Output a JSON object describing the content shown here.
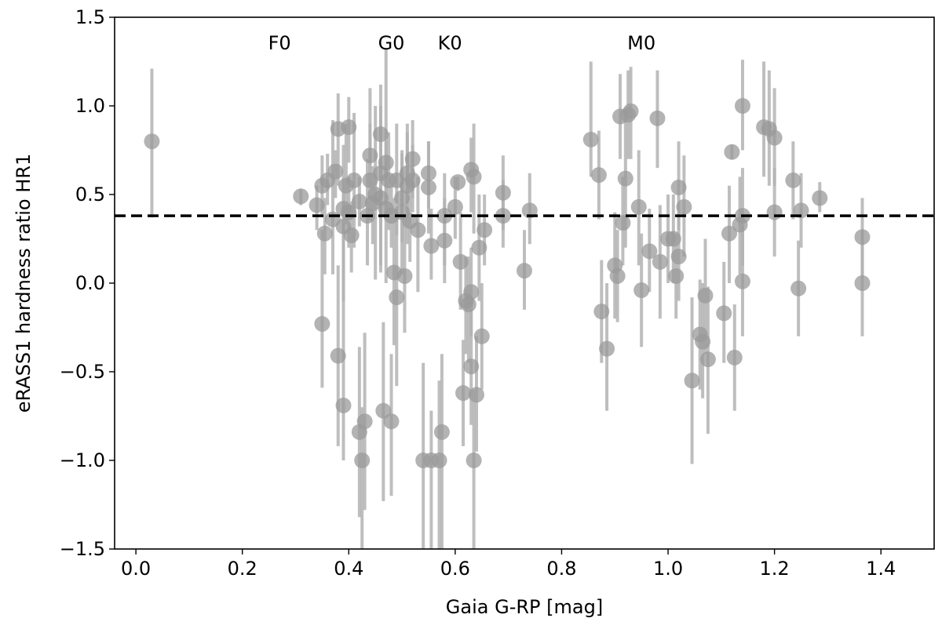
{
  "chart_data": {
    "type": "scatter",
    "title": "",
    "xlabel": "Gaia G-RP [mag]",
    "ylabel": "eRASS1 hardness ratio HR1",
    "xlim": [
      -0.04,
      1.5
    ],
    "ylim": [
      -1.5,
      1.5
    ],
    "xticks": [
      0.0,
      0.2,
      0.4,
      0.6,
      0.8,
      1.0,
      1.2,
      1.4
    ],
    "xtick_labels": [
      "0.0",
      "0.2",
      "0.4",
      "0.6",
      "0.8",
      "1.0",
      "1.2",
      "1.4"
    ],
    "yticks": [
      -1.5,
      -1.0,
      -0.5,
      0.0,
      0.5,
      1.0,
      1.5
    ],
    "ytick_labels": [
      "−1.5",
      "−1.0",
      "−0.5",
      "0.0",
      "0.5",
      "1.0",
      "1.5"
    ],
    "grid": false,
    "legend": "none",
    "reference_line": {
      "y": 0.38,
      "style": "dashed",
      "color": "#000000"
    },
    "annotations": [
      {
        "text": "F0",
        "x": 0.27,
        "y": 1.38
      },
      {
        "text": "G0",
        "x": 0.48,
        "y": 1.38
      },
      {
        "text": "K0",
        "x": 0.59,
        "y": 1.38
      },
      {
        "text": "M0",
        "x": 0.95,
        "y": 1.38
      }
    ],
    "marker_color": "#999999",
    "errorbar_color": "#b3b3b3",
    "points": [
      {
        "x": 0.03,
        "y": 0.8,
        "lo": 0.37,
        "hi": 1.21
      },
      {
        "x": 0.31,
        "y": 0.49,
        "lo": 0.44,
        "hi": 0.53
      },
      {
        "x": 0.34,
        "y": 0.44,
        "lo": 0.3,
        "hi": 0.55
      },
      {
        "x": 0.35,
        "y": 0.55,
        "lo": 0.38,
        "hi": 0.72
      },
      {
        "x": 0.35,
        "y": -0.23,
        "lo": -0.59,
        "hi": 0.3
      },
      {
        "x": 0.355,
        "y": 0.28,
        "lo": 0.05,
        "hi": 0.48
      },
      {
        "x": 0.36,
        "y": 0.58,
        "lo": 0.44,
        "hi": 0.73
      },
      {
        "x": 0.37,
        "y": 0.36,
        "lo": 0.05,
        "hi": 0.92
      },
      {
        "x": 0.375,
        "y": 0.63,
        "lo": 0.48,
        "hi": 0.75
      },
      {
        "x": 0.38,
        "y": 0.87,
        "lo": 0.55,
        "hi": 1.07
      },
      {
        "x": 0.38,
        "y": -0.41,
        "lo": -0.92,
        "hi": 0.1
      },
      {
        "x": 0.39,
        "y": 0.42,
        "lo": -0.1,
        "hi": 0.78
      },
      {
        "x": 0.39,
        "y": 0.32,
        "lo": -0.1,
        "hi": 0.58
      },
      {
        "x": 0.39,
        "y": -0.69,
        "lo": -1.0,
        "hi": -0.08
      },
      {
        "x": 0.395,
        "y": 0.55,
        "lo": 0.33,
        "hi": 0.9
      },
      {
        "x": 0.4,
        "y": 0.88,
        "lo": 0.68,
        "hi": 1.05
      },
      {
        "x": 0.4,
        "y": 0.4,
        "lo": 0.2,
        "hi": 0.6
      },
      {
        "x": 0.405,
        "y": 0.27,
        "lo": 0.06,
        "hi": 0.46
      },
      {
        "x": 0.41,
        "y": 0.58,
        "lo": 0.2,
        "hi": 0.96
      },
      {
        "x": 0.42,
        "y": 0.46,
        "lo": 0.32,
        "hi": 0.6
      },
      {
        "x": 0.42,
        "y": -0.84,
        "lo": -1.32,
        "hi": -0.36
      },
      {
        "x": 0.425,
        "y": -1.0,
        "lo": -1.5,
        "hi": -0.7
      },
      {
        "x": 0.43,
        "y": -0.78,
        "lo": -1.28,
        "hi": -0.28
      },
      {
        "x": 0.435,
        "y": 0.38,
        "lo": 0.1,
        "hi": 0.7
      },
      {
        "x": 0.44,
        "y": 0.72,
        "lo": 0.55,
        "hi": 0.9
      },
      {
        "x": 0.44,
        "y": 0.58,
        "lo": 0.35,
        "hi": 1.1
      },
      {
        "x": 0.445,
        "y": 0.45,
        "lo": 0.22,
        "hi": 0.66
      },
      {
        "x": 0.45,
        "y": 0.5,
        "lo": 0.02,
        "hi": 1.0
      },
      {
        "x": 0.46,
        "y": 0.84,
        "lo": 0.56,
        "hi": 1.12
      },
      {
        "x": 0.46,
        "y": 0.48,
        "lo": 0.06,
        "hi": 0.92
      },
      {
        "x": 0.46,
        "y": 0.62,
        "lo": 0.1,
        "hi": 1.0
      },
      {
        "x": 0.465,
        "y": -0.72,
        "lo": -1.23,
        "hi": -0.22
      },
      {
        "x": 0.47,
        "y": 0.68,
        "lo": 0.38,
        "hi": 1.32
      },
      {
        "x": 0.47,
        "y": 0.42,
        "lo": 0.0,
        "hi": 0.8
      },
      {
        "x": 0.475,
        "y": 0.58,
        "lo": 0.3,
        "hi": 0.85
      },
      {
        "x": 0.48,
        "y": 0.38,
        "lo": 0.2,
        "hi": 0.55
      },
      {
        "x": 0.48,
        "y": -0.78,
        "lo": -1.2,
        "hi": -0.4
      },
      {
        "x": 0.485,
        "y": 0.06,
        "lo": -0.35,
        "hi": 0.48
      },
      {
        "x": 0.49,
        "y": -0.08,
        "lo": -0.58,
        "hi": 0.4
      },
      {
        "x": 0.49,
        "y": 0.58,
        "lo": 0.27,
        "hi": 0.9
      },
      {
        "x": 0.5,
        "y": 0.48,
        "lo": 0.23,
        "hi": 0.73
      },
      {
        "x": 0.5,
        "y": 0.4,
        "lo": 0.05,
        "hi": 0.75
      },
      {
        "x": 0.505,
        "y": 0.04,
        "lo": -0.28,
        "hi": 0.36
      },
      {
        "x": 0.51,
        "y": 0.62,
        "lo": 0.4,
        "hi": 0.85
      },
      {
        "x": 0.51,
        "y": 0.55,
        "lo": 0.22,
        "hi": 0.9
      },
      {
        "x": 0.515,
        "y": 0.35,
        "lo": 0.12,
        "hi": 0.58
      },
      {
        "x": 0.52,
        "y": 0.58,
        "lo": 0.4,
        "hi": 0.78
      },
      {
        "x": 0.52,
        "y": 0.7,
        "lo": 0.48,
        "hi": 0.92
      },
      {
        "x": 0.53,
        "y": 0.3,
        "lo": -0.05,
        "hi": 0.6
      },
      {
        "x": 0.54,
        "y": -1.0,
        "lo": -1.5,
        "hi": -0.45
      },
      {
        "x": 0.55,
        "y": 0.62,
        "lo": 0.42,
        "hi": 0.8
      },
      {
        "x": 0.55,
        "y": 0.54,
        "lo": 0.28,
        "hi": 0.8
      },
      {
        "x": 0.555,
        "y": 0.21,
        "lo": 0.02,
        "hi": 0.42
      },
      {
        "x": 0.555,
        "y": -1.0,
        "lo": -1.5,
        "hi": -0.72
      },
      {
        "x": 0.57,
        "y": -1.0,
        "lo": -1.5,
        "hi": -0.55
      },
      {
        "x": 0.575,
        "y": -0.84,
        "lo": -1.5,
        "hi": -0.4
      },
      {
        "x": 0.58,
        "y": 0.38,
        "lo": 0.1,
        "hi": 0.62
      },
      {
        "x": 0.58,
        "y": 0.24,
        "lo": 0.0,
        "hi": 0.48
      },
      {
        "x": 0.6,
        "y": 0.43,
        "lo": 0.25,
        "hi": 0.6
      },
      {
        "x": 0.605,
        "y": 0.57,
        "lo": 0.52,
        "hi": 0.6
      },
      {
        "x": 0.61,
        "y": 0.12,
        "lo": -0.15,
        "hi": 0.4
      },
      {
        "x": 0.615,
        "y": -0.62,
        "lo": -0.92,
        "hi": -0.32
      },
      {
        "x": 0.62,
        "y": -0.1,
        "lo": -0.4,
        "hi": 0.15
      },
      {
        "x": 0.625,
        "y": -0.12,
        "lo": -0.45,
        "hi": 0.15
      },
      {
        "x": 0.63,
        "y": -0.05,
        "lo": -0.3,
        "hi": 0.2
      },
      {
        "x": 0.63,
        "y": -0.47,
        "lo": -0.8,
        "hi": -0.15
      },
      {
        "x": 0.63,
        "y": 0.64,
        "lo": 0.4,
        "hi": 0.82
      },
      {
        "x": 0.635,
        "y": 0.6,
        "lo": 0.28,
        "hi": 0.9
      },
      {
        "x": 0.635,
        "y": -1.0,
        "lo": -1.5,
        "hi": -0.6
      },
      {
        "x": 0.64,
        "y": -0.63,
        "lo": -0.95,
        "hi": -0.3
      },
      {
        "x": 0.645,
        "y": 0.2,
        "lo": -0.1,
        "hi": 0.5
      },
      {
        "x": 0.65,
        "y": -0.3,
        "lo": -0.6,
        "hi": 0.0
      },
      {
        "x": 0.655,
        "y": 0.3,
        "lo": 0.1,
        "hi": 0.5
      },
      {
        "x": 0.69,
        "y": 0.51,
        "lo": 0.3,
        "hi": 0.72
      },
      {
        "x": 0.69,
        "y": 0.38,
        "lo": 0.2,
        "hi": 0.58
      },
      {
        "x": 0.73,
        "y": 0.07,
        "lo": -0.15,
        "hi": 0.3
      },
      {
        "x": 0.74,
        "y": 0.41,
        "lo": 0.22,
        "hi": 0.62
      },
      {
        "x": 0.855,
        "y": 0.81,
        "lo": 0.6,
        "hi": 1.25
      },
      {
        "x": 0.87,
        "y": 0.61,
        "lo": 0.36,
        "hi": 0.86
      },
      {
        "x": 0.875,
        "y": -0.16,
        "lo": -0.45,
        "hi": 0.13
      },
      {
        "x": 0.885,
        "y": -0.37,
        "lo": -0.72,
        "hi": 0.0
      },
      {
        "x": 0.9,
        "y": 0.1,
        "lo": -0.2,
        "hi": 0.4
      },
      {
        "x": 0.905,
        "y": 0.04,
        "lo": -0.22,
        "hi": 0.3
      },
      {
        "x": 0.91,
        "y": 0.94,
        "lo": 0.7,
        "hi": 1.18
      },
      {
        "x": 0.915,
        "y": 0.34,
        "lo": 0.1,
        "hi": 0.6
      },
      {
        "x": 0.92,
        "y": 0.59,
        "lo": 0.2,
        "hi": 0.98
      },
      {
        "x": 0.925,
        "y": 0.95,
        "lo": 0.7,
        "hi": 1.2
      },
      {
        "x": 0.93,
        "y": 0.97,
        "lo": 0.7,
        "hi": 1.22
      },
      {
        "x": 0.945,
        "y": 0.43,
        "lo": 0.1,
        "hi": 0.75
      },
      {
        "x": 0.95,
        "y": -0.04,
        "lo": -0.36,
        "hi": 0.28
      },
      {
        "x": 0.965,
        "y": 0.18,
        "lo": -0.05,
        "hi": 0.42
      },
      {
        "x": 0.98,
        "y": 0.93,
        "lo": 0.65,
        "hi": 1.2
      },
      {
        "x": 0.985,
        "y": 0.12,
        "lo": -0.2,
        "hi": 0.44
      },
      {
        "x": 1.0,
        "y": 0.25,
        "lo": 0.0,
        "hi": 0.5
      },
      {
        "x": 1.01,
        "y": 0.25,
        "lo": 0.0,
        "hi": 0.5
      },
      {
        "x": 1.015,
        "y": 0.04,
        "lo": -0.2,
        "hi": 0.28
      },
      {
        "x": 1.02,
        "y": 0.54,
        "lo": 0.3,
        "hi": 0.8
      },
      {
        "x": 1.02,
        "y": 0.15,
        "lo": -0.1,
        "hi": 0.4
      },
      {
        "x": 1.03,
        "y": 0.43,
        "lo": 0.15,
        "hi": 0.72
      },
      {
        "x": 1.045,
        "y": -0.55,
        "lo": -1.02,
        "hi": -0.08
      },
      {
        "x": 1.06,
        "y": -0.29,
        "lo": -0.6,
        "hi": 0.02
      },
      {
        "x": 1.065,
        "y": -0.33,
        "lo": -0.65,
        "hi": 0.0
      },
      {
        "x": 1.07,
        "y": -0.07,
        "lo": -0.4,
        "hi": 0.25
      },
      {
        "x": 1.075,
        "y": -0.43,
        "lo": -0.85,
        "hi": -0.02
      },
      {
        "x": 1.105,
        "y": -0.17,
        "lo": -0.45,
        "hi": 0.12
      },
      {
        "x": 1.115,
        "y": 0.28,
        "lo": 0.0,
        "hi": 0.55
      },
      {
        "x": 1.12,
        "y": 0.74,
        "lo": 0.7,
        "hi": 0.78
      },
      {
        "x": 1.125,
        "y": -0.42,
        "lo": -0.72,
        "hi": -0.12
      },
      {
        "x": 1.135,
        "y": 0.33,
        "lo": 0.05,
        "hi": 0.6
      },
      {
        "x": 1.14,
        "y": 0.38,
        "lo": 0.1,
        "hi": 0.65
      },
      {
        "x": 1.14,
        "y": 0.01,
        "lo": -0.3,
        "hi": 0.32
      },
      {
        "x": 1.14,
        "y": 1.0,
        "lo": 0.75,
        "hi": 1.26
      },
      {
        "x": 1.18,
        "y": 0.88,
        "lo": 0.6,
        "hi": 1.25
      },
      {
        "x": 1.19,
        "y": 0.87,
        "lo": 0.55,
        "hi": 1.2
      },
      {
        "x": 1.2,
        "y": 0.82,
        "lo": 0.55,
        "hi": 1.1
      },
      {
        "x": 1.2,
        "y": 0.4,
        "lo": 0.15,
        "hi": 0.65
      },
      {
        "x": 1.235,
        "y": 0.58,
        "lo": 0.36,
        "hi": 0.8
      },
      {
        "x": 1.245,
        "y": -0.03,
        "lo": -0.3,
        "hi": 0.24
      },
      {
        "x": 1.25,
        "y": 0.41,
        "lo": 0.2,
        "hi": 0.62
      },
      {
        "x": 1.285,
        "y": 0.48,
        "lo": 0.4,
        "hi": 0.57
      },
      {
        "x": 1.365,
        "y": 0.26,
        "lo": 0.03,
        "hi": 0.48
      },
      {
        "x": 1.365,
        "y": 0.0,
        "lo": -0.3,
        "hi": 0.3
      }
    ]
  }
}
